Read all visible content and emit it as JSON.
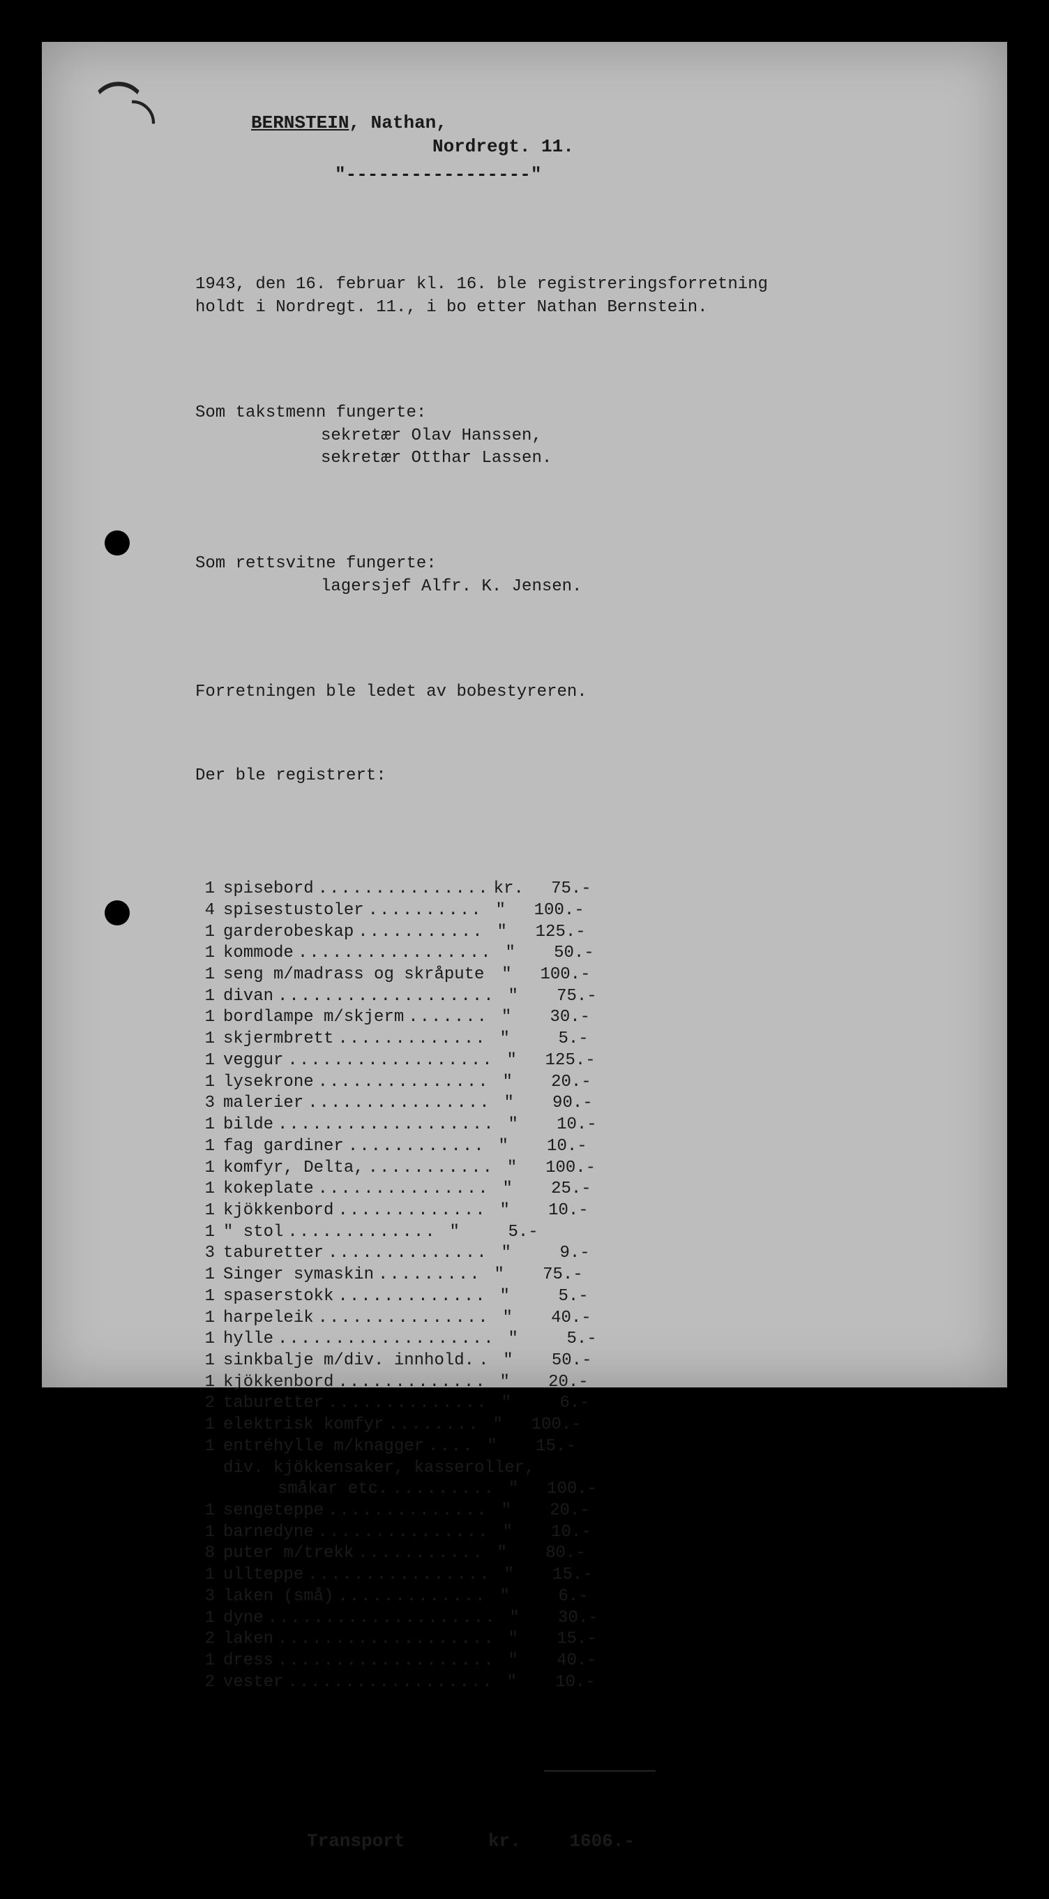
{
  "background_color": "#000000",
  "paper_color": "#bdbdbd",
  "text_color": "#1a1a1a",
  "font_family": "Courier New",
  "header": {
    "surname": "BERNSTEIN",
    "given": "Nathan,",
    "address": "Nordregt. 11.",
    "divider": "\"-----------------\""
  },
  "paragraphs": {
    "p1": "1943, den 16. februar kl. 16. ble registreringsforretning\nholdt i Nordregt. 11., i bo etter Nathan Bernstein.",
    "p2a": "Som takstmenn fungerte:",
    "p2b": "sekretær Olav Hanssen,",
    "p2c": "sekretær Otthar Lassen.",
    "p3a": "Som rettsvitne fungerte:",
    "p3b": "lagersjef Alfr. K. Jensen.",
    "p4": "Forretningen ble ledet av bobestyreren.",
    "p5": "Der ble registrert:"
  },
  "currency_first": "kr.",
  "currency_repeat": "\"",
  "items": [
    {
      "qty": "1",
      "desc": "spisebord",
      "dots": 15,
      "val": "75.-"
    },
    {
      "qty": "4",
      "desc": "spisestustoler",
      "dots": 10,
      "val": "100.-"
    },
    {
      "qty": "1",
      "desc": "garderobeskap",
      "dots": 11,
      "val": "125.-"
    },
    {
      "qty": "1",
      "desc": "kommode",
      "dots": 17,
      "val": "50.-"
    },
    {
      "qty": "1",
      "desc": "seng m/madrass og skråpute",
      "dots": 0,
      "val": "100.-"
    },
    {
      "qty": "1",
      "desc": "divan",
      "dots": 19,
      "val": "75.-"
    },
    {
      "qty": "1",
      "desc": "bordlampe m/skjerm",
      "dots": 7,
      "val": "30.-"
    },
    {
      "qty": "1",
      "desc": "skjermbrett",
      "dots": 13,
      "val": "5.-"
    },
    {
      "qty": "1",
      "desc": "veggur",
      "dots": 18,
      "val": "125.-"
    },
    {
      "qty": "1",
      "desc": "lysekrone",
      "dots": 15,
      "val": "20.-"
    },
    {
      "qty": "3",
      "desc": "malerier",
      "dots": 16,
      "val": "90.-"
    },
    {
      "qty": "1",
      "desc": "bilde",
      "dots": 19,
      "val": "10.-"
    },
    {
      "qty": "1",
      "desc": "fag gardiner",
      "dots": 12,
      "val": "10.-"
    },
    {
      "qty": "1",
      "desc": "komfyr, Delta,",
      "dots": 11,
      "val": "100.-"
    },
    {
      "qty": "1",
      "desc": "kokeplate",
      "dots": 15,
      "val": "25.-"
    },
    {
      "qty": "1",
      "desc": "kjökkenbord",
      "dots": 13,
      "val": "10.-"
    },
    {
      "qty": "1",
      "desc": "   \"   stol",
      "dots": 13,
      "val": "5.-"
    },
    {
      "qty": "3",
      "desc": "taburetter",
      "dots": 14,
      "val": "9.-"
    },
    {
      "qty": "1",
      "desc": "Singer symaskin",
      "dots": 9,
      "val": "75.-"
    },
    {
      "qty": "1",
      "desc": "spaserstokk",
      "dots": 13,
      "val": "5.-"
    },
    {
      "qty": "1",
      "desc": "harpeleik",
      "dots": 15,
      "val": "40.-"
    },
    {
      "qty": "1",
      "desc": "hylle",
      "dots": 19,
      "val": "5.-"
    },
    {
      "qty": "1",
      "desc": "sinkbalje m/div. innhold.",
      "dots": 1,
      "val": "50.-"
    },
    {
      "qty": "1",
      "desc": "kjökkenbord",
      "dots": 13,
      "val": "20.-"
    },
    {
      "qty": "2",
      "desc": "taburetter",
      "dots": 14,
      "val": "6.-"
    },
    {
      "qty": "1",
      "desc": "elektrisk komfyr",
      "dots": 8,
      "val": "100.-"
    },
    {
      "qty": "1",
      "desc": "entréhylle m/knagger",
      "dots": 4,
      "val": "15.-"
    },
    {
      "qty": "",
      "desc": "div. kjökkensaker, kasseroller,",
      "cont": true
    },
    {
      "qty": "",
      "desc": "småkar etc.",
      "dots": 9,
      "val": "100.-",
      "cont2": true
    },
    {
      "qty": "1",
      "desc": "sengeteppe",
      "dots": 14,
      "val": "20.-"
    },
    {
      "qty": "1",
      "desc": "barnedyne",
      "dots": 15,
      "val": "10.-"
    },
    {
      "qty": "8",
      "desc": "puter m/trekk",
      "dots": 11,
      "val": "80.-"
    },
    {
      "qty": "1",
      "desc": "ullteppe",
      "dots": 16,
      "val": "15.-"
    },
    {
      "qty": "3",
      "desc": "laken (små)",
      "dots": 13,
      "val": "6.-"
    },
    {
      "qty": "1",
      "desc": "dyne",
      "dots": 20,
      "val": "30.-"
    },
    {
      "qty": "2",
      "desc": "laken",
      "dots": 19,
      "val": "15.-"
    },
    {
      "qty": "1",
      "desc": "dress",
      "dots": 19,
      "val": "40.-"
    },
    {
      "qty": "2",
      "desc": "vester",
      "dots": 18,
      "val": "10.-"
    }
  ],
  "total": {
    "label": "Transport",
    "currency": "kr.",
    "value": "1606.-"
  }
}
